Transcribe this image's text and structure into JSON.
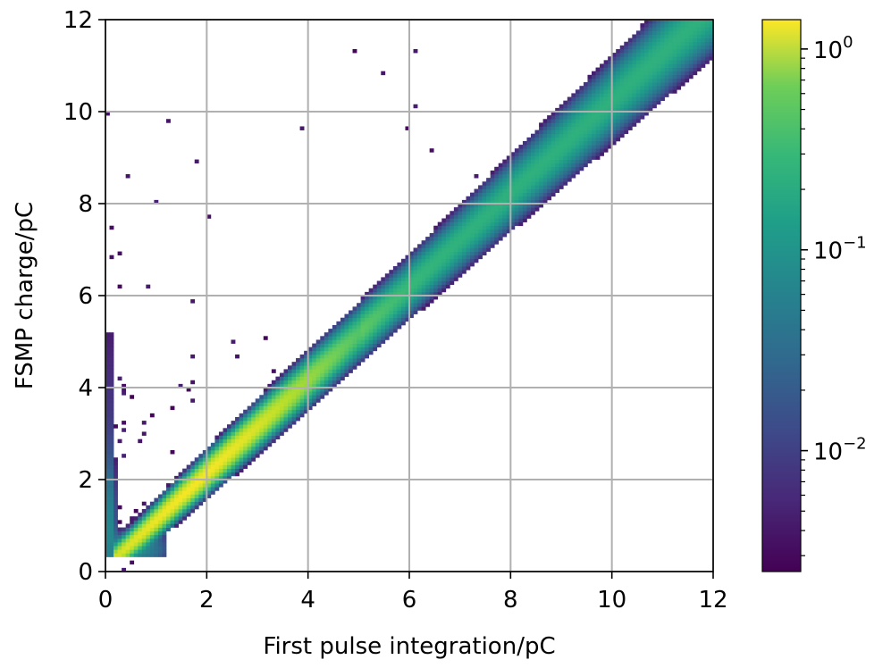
{
  "chart_data": {
    "type": "heatmap",
    "xlabel": "First pulse integration/pC",
    "ylabel": "FSMP charge/pC",
    "xlim": [
      0,
      12
    ],
    "ylim": [
      0,
      12
    ],
    "xticks": [
      "0",
      "2",
      "4",
      "6",
      "8",
      "10",
      "12"
    ],
    "yticks": [
      "0",
      "2",
      "4",
      "6",
      "8",
      "10",
      "12"
    ],
    "grid": true,
    "colormap": "viridis",
    "colorbar": {
      "scale": "log",
      "range": [
        0.0025,
        1.4
      ],
      "ticks": [
        {
          "base": "10",
          "exp": "0",
          "value": 1
        },
        {
          "base": "10",
          "exp": "−1",
          "value": 0.1
        },
        {
          "base": "10",
          "exp": "−2",
          "value": 0.01
        }
      ]
    },
    "density": {
      "description_of_structure": "main ridge along y=x with peak near (1.7,1.8); vertical band at x<0.3; sparse outliers above the diagonal",
      "ridge": {
        "from": [
          0.2,
          0.45
        ],
        "to": [
          11.7,
          11.9
        ],
        "peak": [
          1.7,
          1.8
        ],
        "peak_value": 1.3
      },
      "vertical_band": {
        "x": [
          0.0,
          0.3
        ],
        "y": [
          0.3,
          7.0
        ]
      }
    }
  }
}
